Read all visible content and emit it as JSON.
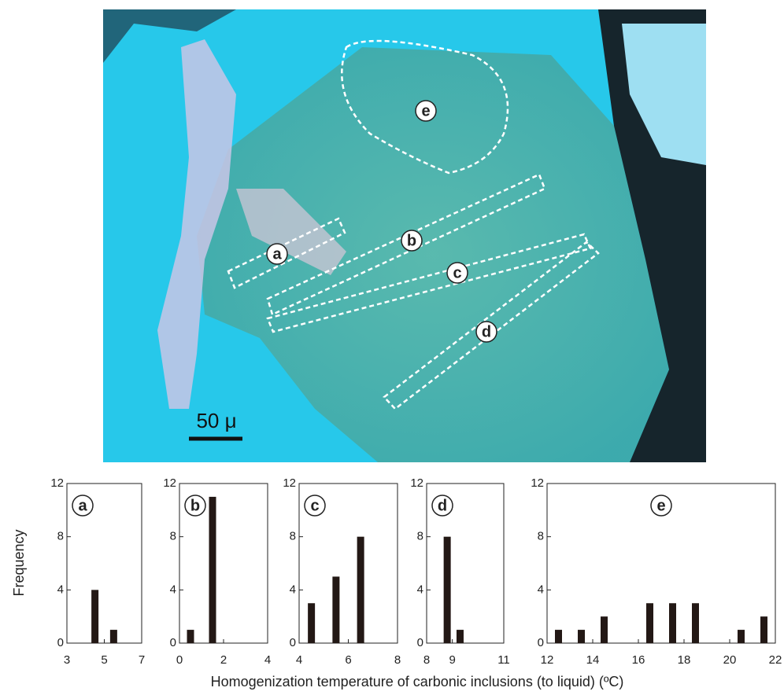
{
  "photo": {
    "labels": [
      "a",
      "b",
      "c",
      "d",
      "e"
    ],
    "scale_bar": "50 μ"
  },
  "figure": {
    "ylabel": "Frequency",
    "xlabel": "Homogenization temperature of carbonic inclusions (to liquid) (ºC)"
  },
  "chart_data": [
    {
      "type": "bar",
      "title": "a",
      "x": [
        4.5,
        5.5
      ],
      "values": [
        4,
        1
      ],
      "color": "#231815",
      "xlim": [
        3,
        7
      ],
      "xticks": [
        3,
        5,
        7
      ],
      "ylim": [
        0,
        12
      ],
      "yticks": [
        0,
        4,
        8,
        12
      ]
    },
    {
      "type": "bar",
      "title": "b",
      "x": [
        0.5,
        1.5
      ],
      "values": [
        1,
        11
      ],
      "color": "#231815",
      "xlim": [
        0,
        4
      ],
      "xticks": [
        0,
        2,
        4
      ],
      "ylim": [
        0,
        12
      ],
      "yticks": [
        0,
        4,
        8,
        12
      ]
    },
    {
      "type": "bar",
      "title": "c",
      "x": [
        4.5,
        5.5,
        6.5
      ],
      "values": [
        3,
        5,
        8
      ],
      "color": "#231815",
      "xlim": [
        4,
        8
      ],
      "xticks": [
        4,
        6,
        8
      ],
      "ylim": [
        0,
        12
      ],
      "yticks": [
        0,
        4,
        8,
        12
      ]
    },
    {
      "type": "bar",
      "title": "d",
      "x": [
        8.8,
        9.3
      ],
      "values": [
        8,
        1
      ],
      "color": "#231815",
      "xlim": [
        8,
        11
      ],
      "xticks": [
        8,
        9,
        11
      ],
      "ylim": [
        0,
        12
      ],
      "yticks": [
        0,
        4,
        8,
        12
      ]
    },
    {
      "type": "bar",
      "title": "e",
      "x": [
        12.5,
        13.5,
        14.5,
        16.5,
        17.5,
        18.5,
        20.5,
        21.5
      ],
      "values": [
        1,
        1,
        2,
        3,
        3,
        3,
        1,
        2
      ],
      "color": "#231815",
      "xlim": [
        12,
        22
      ],
      "xticks": [
        12,
        14,
        16,
        18,
        20,
        22
      ],
      "ylim": [
        0,
        12
      ],
      "yticks": [
        0,
        4,
        8,
        12
      ]
    }
  ]
}
